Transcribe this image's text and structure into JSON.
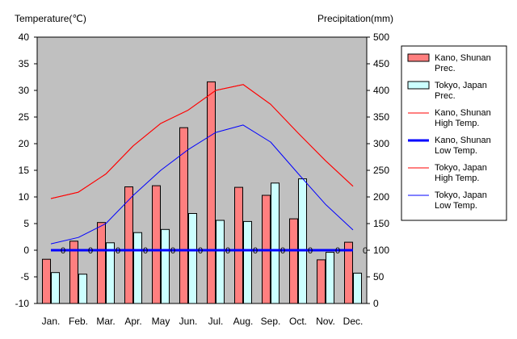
{
  "chart_data": {
    "type": "bar",
    "title": "",
    "ylabel_left": "Temperature(℃)",
    "ylabel_right": "Precipitation(mm)",
    "categories": [
      "Jan.",
      "Feb.",
      "Mar.",
      "Apr.",
      "May",
      "Jun.",
      "Jul.",
      "Aug.",
      "Sep.",
      "Oct.",
      "Nov.",
      "Dec."
    ],
    "y_left": {
      "min": -10,
      "max": 40,
      "ticks": [
        40,
        35,
        30,
        25,
        20,
        15,
        10,
        5,
        0,
        -5,
        -10
      ]
    },
    "y_right": {
      "min": 0,
      "max": 500,
      "ticks": [
        500,
        450,
        400,
        350,
        300,
        250,
        200,
        150,
        100,
        50,
        0
      ]
    },
    "grid": false,
    "legend_position": "right",
    "bar_series": [
      {
        "name": "Kano, Shunan Prec.",
        "legend_lines": [
          "Kano, Shunan",
          "Prec."
        ],
        "color": "#ff7f7f",
        "axis": "right",
        "values": [
          83,
          117,
          152,
          219,
          221,
          330,
          416,
          218,
          203,
          159,
          82,
          115
        ]
      },
      {
        "name": "Tokyo, Japan Prec.",
        "legend_lines": [
          "Tokyo, Japan",
          "Prec."
        ],
        "color": "#ccffff",
        "axis": "right",
        "values": [
          58,
          55,
          114,
          133,
          139,
          169,
          156,
          154,
          226,
          234,
          96,
          57
        ]
      }
    ],
    "line_series": [
      {
        "name": "Kano, Shunan High Temp.",
        "legend_lines": [
          "Kano, Shunan",
          "High Temp."
        ],
        "color": "#ff0000",
        "width": 1,
        "axis": "left",
        "values": [
          9.7,
          10.9,
          14.3,
          19.6,
          23.8,
          26.3,
          30.0,
          31.1,
          27.4,
          22.0,
          16.8,
          12.0
        ]
      },
      {
        "name": "Kano, Shunan Low Temp.",
        "legend_lines": [
          "Kano, Shunan",
          "Low Temp."
        ],
        "color": "#0000ff",
        "width": 3,
        "axis": "left",
        "values": [
          0,
          0,
          0,
          0,
          0,
          0,
          0,
          0,
          0,
          0,
          0,
          0
        ]
      },
      {
        "name": "Tokyo, Japan High Temp.",
        "legend_lines": [
          "Tokyo, Japan",
          "High Temp."
        ],
        "color": "#ff0000",
        "width": 1,
        "axis": "left",
        "values": [
          9.7,
          10.9,
          14.3,
          19.6,
          23.8,
          26.3,
          30.0,
          31.1,
          27.4,
          22.0,
          16.8,
          12.0
        ]
      },
      {
        "name": "Tokyo, Japan Low Temp.",
        "legend_lines": [
          "Tokyo, Japan",
          "Low Temp."
        ],
        "color": "#0000ff",
        "width": 1,
        "axis": "left",
        "values": [
          1.2,
          2.4,
          5.0,
          10.3,
          15.0,
          18.9,
          22.1,
          23.5,
          20.3,
          14.4,
          8.6,
          3.8
        ]
      }
    ],
    "zero_markers": {
      "label": "0",
      "values": [
        "0",
        "0",
        "0",
        "0",
        "0",
        "0",
        "0",
        "0",
        "0",
        "0",
        "0",
        "0"
      ]
    }
  }
}
